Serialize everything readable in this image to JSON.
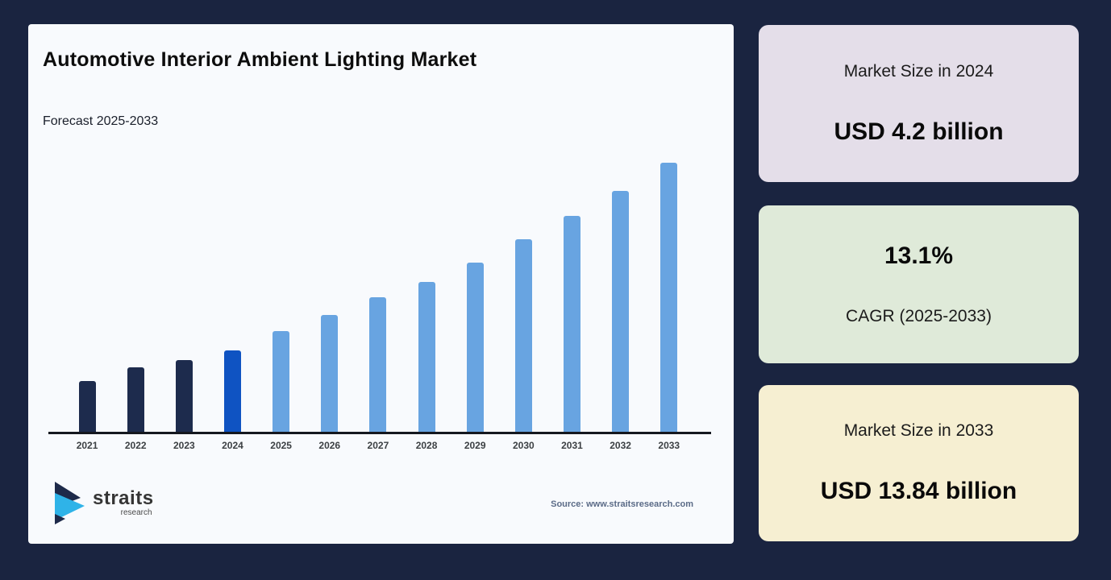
{
  "page": {
    "background": "#1a2440",
    "panel_background": "#f8fafd"
  },
  "panel": {
    "title": "Automotive Interior Ambient Lighting Market",
    "subtitle": "Forecast 2025-2033",
    "source": "Source: www.straitsresearch.com",
    "logo": {
      "word": "straits",
      "sub": "research"
    }
  },
  "chart_data": {
    "type": "bar",
    "title": "Automotive Interior Ambient Lighting Market",
    "subtitle": "Forecast 2025-2033",
    "unit": "USD billion",
    "categories": [
      "2021",
      "2022",
      "2023",
      "2024",
      "2025",
      "2026",
      "2027",
      "2028",
      "2029",
      "2030",
      "2031",
      "2032",
      "2033"
    ],
    "values": [
      2.6,
      3.3,
      3.7,
      4.2,
      5.2,
      6.0,
      6.9,
      7.7,
      8.7,
      9.9,
      11.1,
      12.4,
      13.84
    ],
    "ylim": [
      0,
      14
    ],
    "grid": false,
    "legend": null,
    "axis_color": "#15181f",
    "colors": {
      "historical": "#1d2b4d",
      "base_year": "#0f53c2",
      "forecast": "#68a4e1"
    },
    "segments": {
      "historical_years": [
        "2021",
        "2022",
        "2023"
      ],
      "base_year": "2024",
      "forecast_years": [
        "2025",
        "2026",
        "2027",
        "2028",
        "2029",
        "2030",
        "2031",
        "2032",
        "2033"
      ]
    }
  },
  "cards": [
    {
      "label": "Market Size in 2024",
      "value": "USD 4.2 billion",
      "background": "#e4dee9"
    },
    {
      "value": "13.1%",
      "label": "CAGR (2025-2033)",
      "background": "#dfead9"
    },
    {
      "label": "Market Size in 2033",
      "value": "USD 13.84 billion",
      "background": "#f6efd2"
    }
  ]
}
